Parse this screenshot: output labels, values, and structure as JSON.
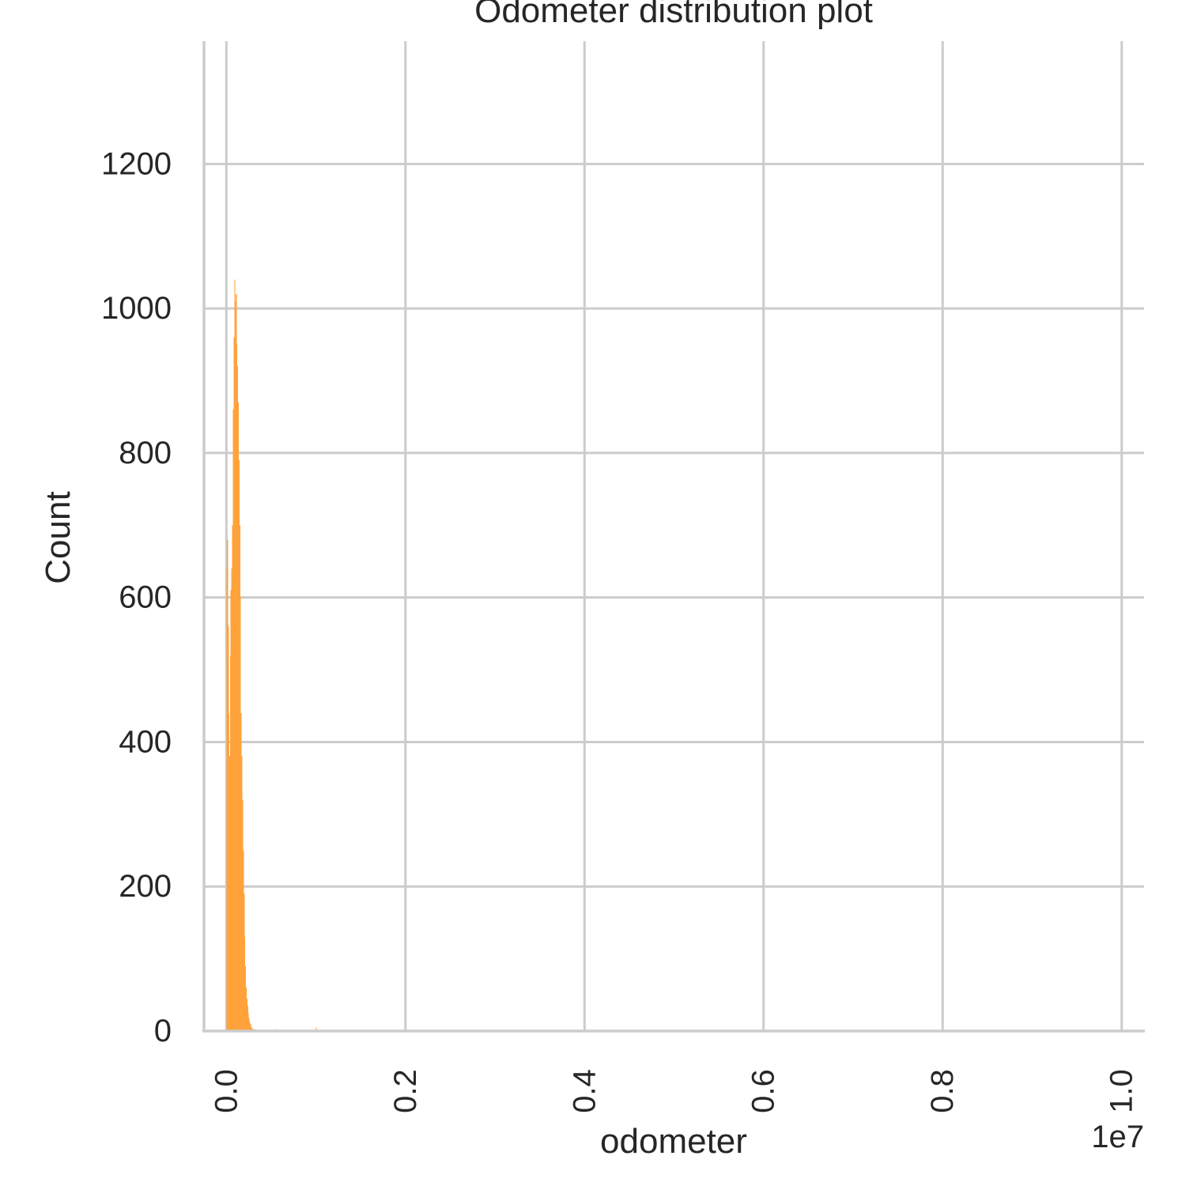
{
  "chart_data": {
    "type": "bar",
    "title": "Odometer distribution plot",
    "xlabel": "odometer",
    "ylabel": "Count",
    "x_offset_text": "1e7",
    "xlim": [
      -250000,
      10250000
    ],
    "ylim": [
      0,
      1370
    ],
    "x_ticks": [
      0,
      2000000,
      4000000,
      6000000,
      8000000,
      10000000
    ],
    "x_tick_labels": [
      "0.0",
      "0.2",
      "0.4",
      "0.6",
      "0.8",
      "1.0"
    ],
    "y_ticks": [
      0,
      200,
      400,
      600,
      800,
      1000,
      1200
    ],
    "y_tick_labels": [
      "0",
      "200",
      "400",
      "600",
      "800",
      "1000",
      "1200"
    ],
    "grid": true,
    "bar_color": "#ffa23a",
    "bin_width": 8000,
    "bins": [
      [
        -10000,
        0
      ],
      [
        -2000,
        0
      ],
      [
        0,
        640
      ],
      [
        8000,
        680
      ],
      [
        16000,
        560
      ],
      [
        24000,
        440
      ],
      [
        32000,
        380
      ],
      [
        40000,
        520
      ],
      [
        48000,
        610
      ],
      [
        56000,
        640
      ],
      [
        64000,
        700
      ],
      [
        72000,
        860
      ],
      [
        80000,
        960
      ],
      [
        88000,
        1040
      ],
      [
        96000,
        1010
      ],
      [
        104000,
        1020
      ],
      [
        112000,
        950
      ],
      [
        120000,
        920
      ],
      [
        128000,
        870
      ],
      [
        136000,
        790
      ],
      [
        144000,
        700
      ],
      [
        152000,
        600
      ],
      [
        160000,
        440
      ],
      [
        168000,
        380
      ],
      [
        176000,
        320
      ],
      [
        184000,
        250
      ],
      [
        192000,
        190
      ],
      [
        200000,
        130
      ],
      [
        208000,
        90
      ],
      [
        216000,
        60
      ],
      [
        224000,
        45
      ],
      [
        232000,
        35
      ],
      [
        240000,
        25
      ],
      [
        248000,
        18
      ],
      [
        256000,
        12
      ],
      [
        264000,
        10
      ],
      [
        272000,
        6
      ],
      [
        280000,
        4
      ],
      [
        288000,
        3
      ],
      [
        296000,
        3
      ],
      [
        304000,
        2
      ],
      [
        312000,
        2
      ],
      [
        320000,
        2
      ],
      [
        336000,
        1
      ],
      [
        352000,
        1
      ],
      [
        368000,
        1
      ],
      [
        384000,
        1
      ],
      [
        400000,
        1
      ],
      [
        416000,
        1
      ],
      [
        432000,
        1
      ],
      [
        448000,
        1
      ],
      [
        480000,
        1
      ],
      [
        512000,
        1
      ],
      [
        544000,
        3
      ],
      [
        576000,
        1
      ],
      [
        640000,
        1
      ],
      [
        720000,
        1
      ],
      [
        800000,
        1
      ],
      [
        880000,
        1
      ],
      [
        960000,
        1
      ],
      [
        1000000,
        5
      ],
      [
        1008000,
        2
      ],
      [
        1100000,
        1
      ]
    ]
  }
}
